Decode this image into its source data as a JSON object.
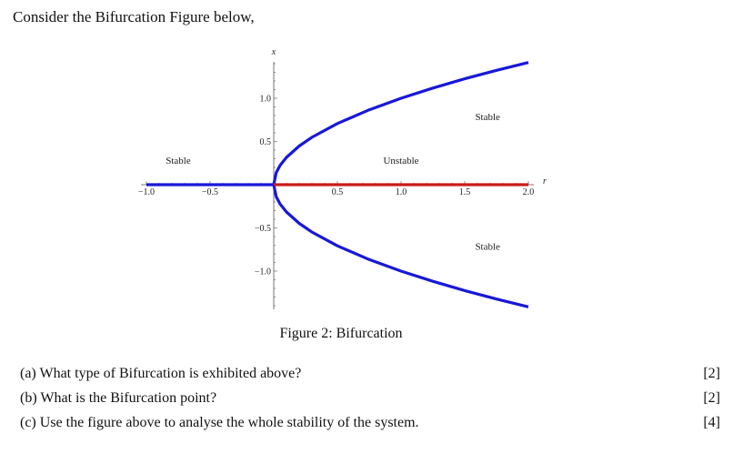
{
  "intro": "Consider the Bifurcation Figure below,",
  "figure": {
    "caption": "Figure 2: Bifurcation"
  },
  "chart_data": {
    "type": "line",
    "xlabel": "r",
    "ylabel": "x",
    "xlim": [
      -1.0,
      2.0
    ],
    "ylim": [
      -1.3,
      1.3
    ],
    "xticks": [
      -1.0,
      -0.5,
      0.5,
      1.0,
      1.5,
      2.0
    ],
    "xtick_labels": [
      "−1.0",
      "−0.5",
      "0.5",
      "1.0",
      "1.5",
      "2.0"
    ],
    "yticks": [
      1.0,
      0.5,
      -0.5,
      -1.0
    ],
    "ytick_labels": [
      "1.0",
      "0.5",
      "−0.5",
      "−1.0"
    ],
    "series": [
      {
        "color": "#1818d8",
        "x": [
          -1.0,
          0.0
        ],
        "y": [
          0,
          0
        ]
      },
      {
        "color": "#1818d8",
        "x": [
          0,
          0.02,
          0.05,
          0.1,
          0.2,
          0.3,
          0.5,
          0.75,
          1.0,
          1.25,
          1.5,
          1.75,
          2.0
        ],
        "y": [
          0,
          0.141,
          0.224,
          0.316,
          0.447,
          0.548,
          0.707,
          0.866,
          1.0,
          1.118,
          1.225,
          1.323,
          1.414
        ]
      },
      {
        "color": "#1818d8",
        "x": [
          0,
          0.02,
          0.05,
          0.1,
          0.2,
          0.3,
          0.5,
          0.75,
          1.0,
          1.25,
          1.5,
          1.75,
          2.0
        ],
        "y": [
          0,
          -0.141,
          -0.224,
          -0.316,
          -0.447,
          -0.548,
          -0.707,
          -0.866,
          -1.0,
          -1.118,
          -1.225,
          -1.323,
          -1.414
        ]
      },
      {
        "color": "#cc1a1a",
        "x": [
          0.0,
          2.0
        ],
        "y": [
          0,
          0
        ]
      }
    ],
    "annotations": [
      {
        "text": "Stable",
        "x": -0.75,
        "y": 0.24
      },
      {
        "text": "Unstable",
        "x": 1.0,
        "y": 0.24
      },
      {
        "text": "Stable",
        "x": 1.68,
        "y": 0.75
      },
      {
        "text": "Stable",
        "x": 1.68,
        "y": -0.75
      }
    ]
  },
  "questions": [
    {
      "text": "(a) What type of Bifurcation is exhibited above?",
      "marks": "[2]"
    },
    {
      "text": "(b) What is the Bifurcation point?",
      "marks": "[2]"
    },
    {
      "text": "(c) Use the figure above to analyse the whole stability of the system.",
      "marks": "[4]"
    }
  ]
}
